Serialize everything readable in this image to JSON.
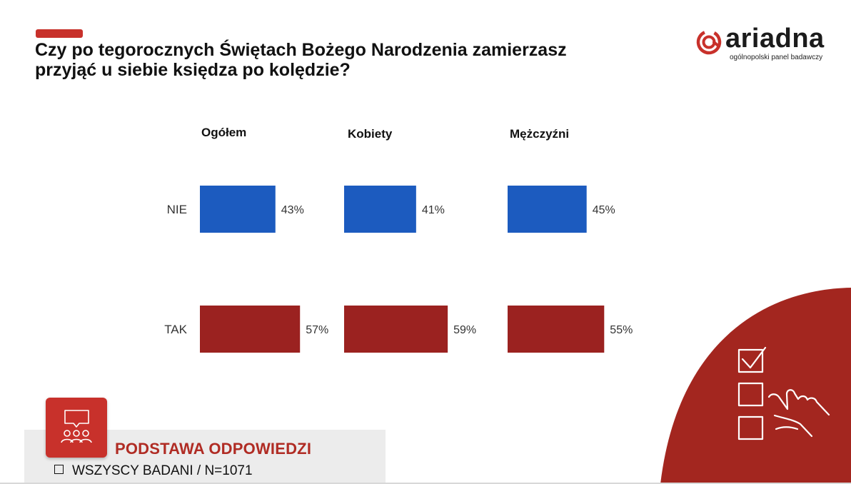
{
  "header": {
    "title_line1": "Czy po tegorocznych Świętach Bożego Narodzenia zamierzasz",
    "title_line2": "przyjąć u siebie księdza po kolędzie?",
    "accent_color": "#c8312b"
  },
  "logo": {
    "word": "ariadna",
    "tagline": "ogólnopolski panel badawczy"
  },
  "chart_data": {
    "type": "bar",
    "orientation": "horizontal",
    "title": "Czy po tegorocznych Świętach Bożego Narodzenia zamierzasz przyjąć u siebie księdza po kolędzie?",
    "categories": [
      "NIE",
      "TAK"
    ],
    "category_colors": [
      "#1c5bbf",
      "#9b2220"
    ],
    "unit": "%",
    "groups": [
      {
        "name": "Ogółem",
        "values": [
          43,
          57
        ]
      },
      {
        "name": "Kobiety",
        "values": [
          41,
          59
        ]
      },
      {
        "name": "Mężczyźni",
        "values": [
          45,
          55
        ]
      }
    ],
    "grid": false,
    "legend": "none"
  },
  "basis": {
    "title": "PODSTAWA ODPOWIEDZI",
    "line": "WSZYSCY BADANI / N=1071",
    "icon": "audience-chat-icon",
    "color": "#c8312b"
  },
  "decoration": {
    "corner_icon": "checklist-hand-icon",
    "corner_color": "#a3261f"
  }
}
